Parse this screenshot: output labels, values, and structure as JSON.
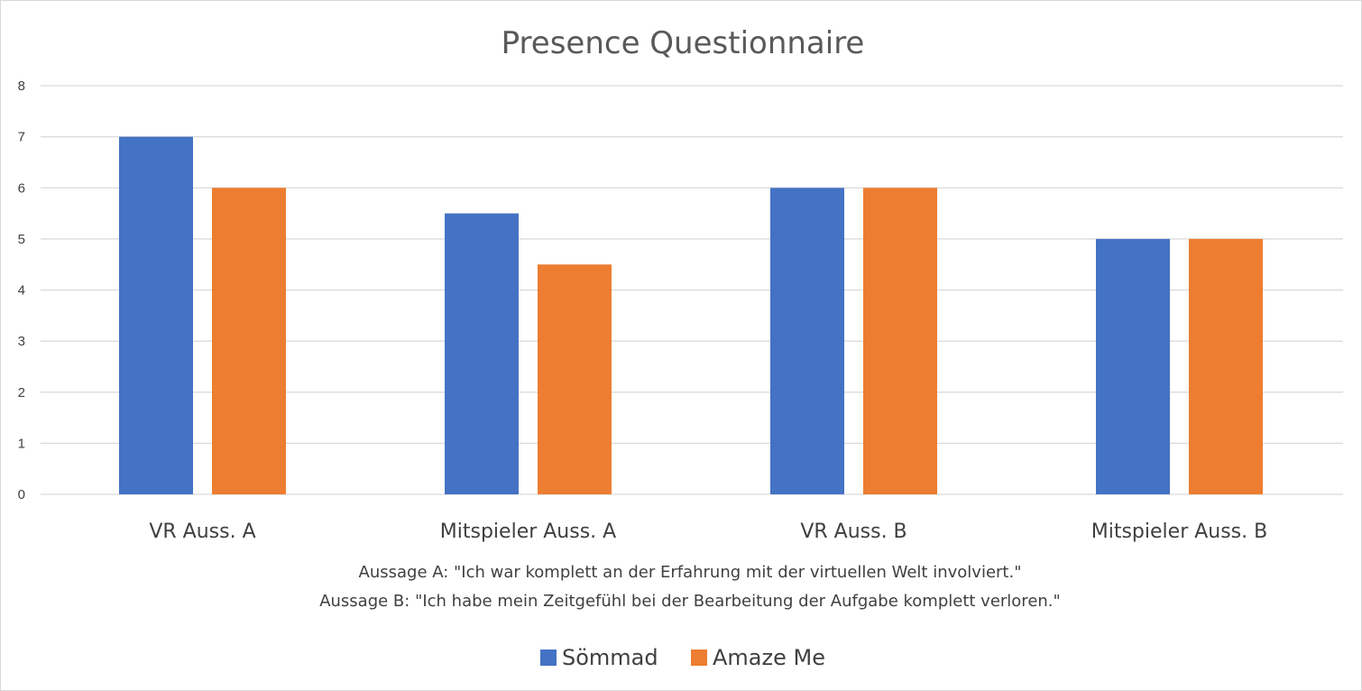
{
  "chart_data": {
    "type": "bar",
    "title": "Presence Questionnaire",
    "categories": [
      "VR Auss. A",
      "Mitspieler Auss. A",
      "VR Auss. B",
      "Mitspieler Auss. B"
    ],
    "series": [
      {
        "name": "Sömmad",
        "values": [
          7,
          5.5,
          6,
          5
        ],
        "color": "#4472C4"
      },
      {
        "name": "Amaze Me",
        "values": [
          6,
          4.5,
          6,
          5
        ],
        "color": "#ED7D31"
      }
    ],
    "xlabel": [
      "Aussage A: \"Ich war komplett an der Erfahrung mit der virtuellen Welt involviert.\"",
      "Aussage B: \"Ich habe mein Zeitgefühl bei der Bearbeitung der Aufgabe komplett verloren.\""
    ],
    "ylabel": "",
    "ylim": [
      0,
      8
    ],
    "yticks": [
      0,
      1,
      2,
      3,
      4,
      5,
      6,
      7,
      8
    ],
    "grid": true,
    "legend_position": "bottom"
  }
}
